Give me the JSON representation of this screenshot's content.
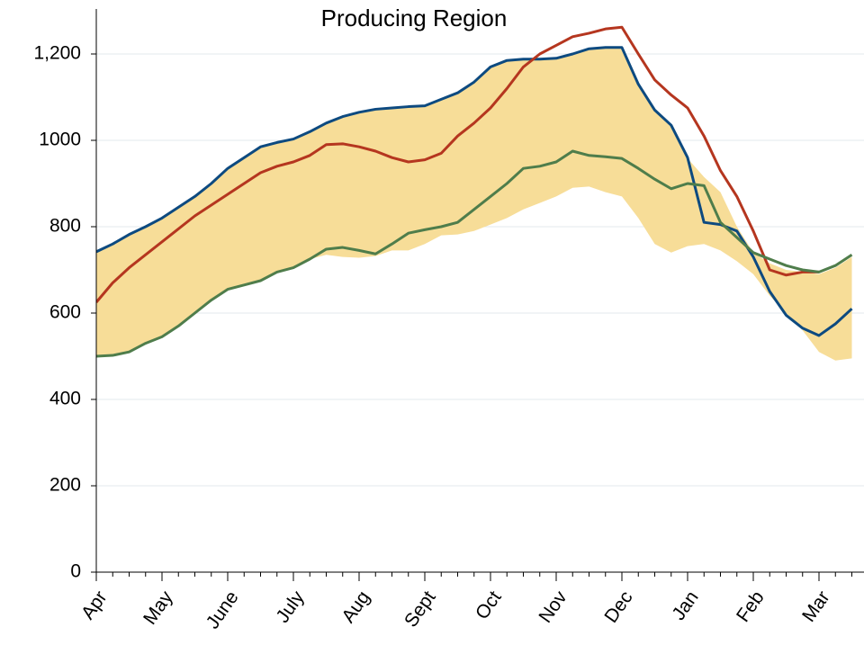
{
  "chart_data": {
    "type": "line",
    "title": "Producing Region",
    "categories": [
      "Apr",
      null,
      null,
      null,
      "May",
      null,
      null,
      null,
      "June",
      null,
      null,
      null,
      "July",
      null,
      null,
      null,
      "Aug",
      null,
      null,
      null,
      "Sept",
      null,
      null,
      null,
      "Oct",
      null,
      null,
      null,
      "Nov",
      null,
      null,
      null,
      "Dec",
      null,
      null,
      null,
      "Jan",
      null,
      null,
      null,
      "Feb",
      null,
      null,
      null,
      "Mar",
      null,
      null
    ],
    "band": {
      "color": "#f7dd98",
      "low": [
        500,
        502,
        510,
        530,
        545,
        570,
        600,
        630,
        655,
        665,
        675,
        695,
        705,
        725,
        735,
        730,
        728,
        732,
        745,
        745,
        760,
        780,
        782,
        790,
        805,
        820,
        840,
        855,
        870,
        890,
        893,
        880,
        870,
        820,
        760,
        740,
        755,
        760,
        745,
        720,
        690,
        640,
        600,
        560,
        510,
        490,
        495
      ],
      "high": [
        740,
        758,
        780,
        798,
        818,
        843,
        868,
        898,
        933,
        958,
        983,
        993,
        1001,
        1018,
        1038,
        1053,
        1063,
        1070,
        1073,
        1076,
        1078,
        1093,
        1108,
        1133,
        1168,
        1183,
        1186,
        1186,
        1188,
        1198,
        1210,
        1213,
        1213,
        1128,
        1068,
        1033,
        958,
        915,
        880,
        800,
        740,
        715,
        700,
        695,
        690,
        705,
        730
      ]
    },
    "series": [
      {
        "color": "#0d4a80",
        "values": [
          742,
          760,
          782,
          800,
          820,
          845,
          870,
          900,
          935,
          960,
          985,
          995,
          1003,
          1020,
          1040,
          1055,
          1065,
          1072,
          1075,
          1078,
          1080,
          1095,
          1110,
          1135,
          1170,
          1185,
          1188,
          1188,
          1190,
          1200,
          1212,
          1215,
          1215,
          1130,
          1070,
          1035,
          960,
          810,
          805,
          790,
          730,
          650,
          595,
          565,
          548,
          575,
          610
        ]
      },
      {
        "color": "#b5361f",
        "values": [
          625,
          670,
          705,
          735,
          765,
          795,
          825,
          850,
          875,
          900,
          925,
          940,
          950,
          965,
          990,
          992,
          985,
          975,
          960,
          950,
          955,
          970,
          1010,
          1040,
          1075,
          1120,
          1170,
          1200,
          1220,
          1240,
          1248,
          1258,
          1262,
          1200,
          1140,
          1105,
          1075,
          1010,
          930,
          870,
          790,
          700,
          688,
          695,
          695,
          null,
          null
        ]
      },
      {
        "color": "#4f7d4b",
        "values": [
          500,
          502,
          510,
          530,
          545,
          570,
          600,
          630,
          655,
          665,
          675,
          695,
          705,
          725,
          748,
          752,
          745,
          737,
          760,
          785,
          793,
          800,
          810,
          840,
          870,
          900,
          935,
          940,
          950,
          975,
          965,
          962,
          958,
          935,
          910,
          888,
          900,
          895,
          810,
          775,
          740,
          725,
          710,
          700,
          695,
          710,
          735
        ]
      }
    ],
    "ylim": [
      0,
      1200
    ],
    "yticks": [
      0,
      200,
      400,
      600,
      800,
      1000,
      {
        "value": 1200,
        "label": "1,200"
      }
    ],
    "grid": true
  }
}
